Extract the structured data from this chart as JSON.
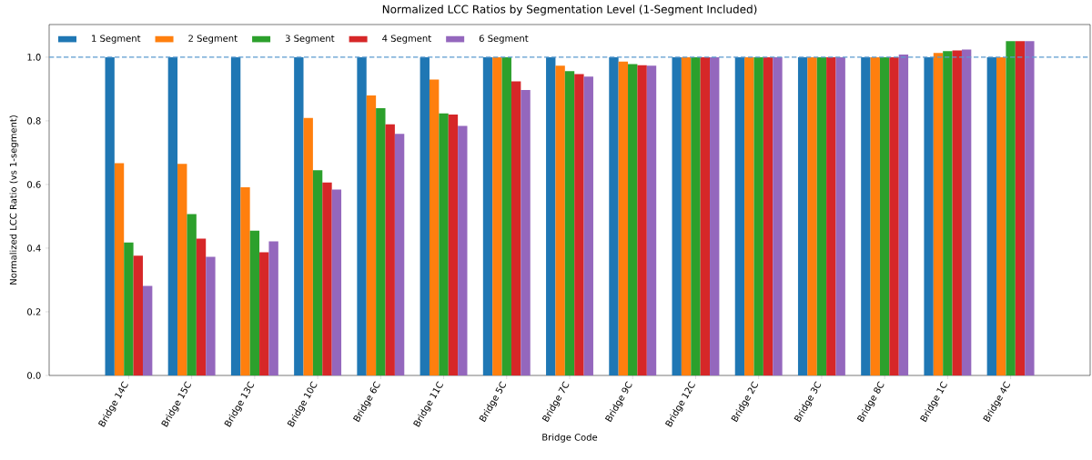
{
  "chart_data": {
    "type": "bar",
    "title": "Normalized LCC Ratios by Segmentation Level (1-Segment Included)",
    "xlabel": "Bridge Code",
    "ylabel": "Normalized LCC Ratio (vs 1-segment)",
    "categories": [
      "Bridge 14C",
      "Bridge 15C",
      "Bridge 13C",
      "Bridge 10C",
      "Bridge 6C",
      "Bridge 11C",
      "Bridge 5C",
      "Bridge 7C",
      "Bridge 9C",
      "Bridge 12C",
      "Bridge 2C",
      "Bridge 3C",
      "Bridge 8C",
      "Bridge 1C",
      "Bridge 4C"
    ],
    "series": [
      {
        "name": "1 Segment",
        "color": "#1f77b4",
        "values": [
          1.0,
          1.0,
          1.0,
          1.0,
          1.0,
          1.0,
          1.0,
          1.0,
          1.0,
          1.0,
          1.0,
          1.0,
          1.0,
          1.0,
          1.0
        ]
      },
      {
        "name": "2 Segment",
        "color": "#ff7f0e",
        "values": [
          0.667,
          0.665,
          0.591,
          0.809,
          0.88,
          0.93,
          1.0,
          0.973,
          0.986,
          1.0,
          1.0,
          1.0,
          1.0,
          1.013,
          1.0
        ]
      },
      {
        "name": "3 Segment",
        "color": "#2ca02c",
        "values": [
          0.418,
          0.507,
          0.455,
          0.645,
          0.84,
          0.823,
          1.0,
          0.956,
          0.978,
          1.0,
          1.0,
          1.0,
          1.0,
          1.019,
          1.05
        ]
      },
      {
        "name": "4 Segment",
        "color": "#d62728",
        "values": [
          0.376,
          0.43,
          0.387,
          0.606,
          0.789,
          0.82,
          0.924,
          0.947,
          0.975,
          1.0,
          1.0,
          1.0,
          1.0,
          1.021,
          1.05
        ]
      },
      {
        "name": "6 Segment",
        "color": "#9467bd",
        "values": [
          0.281,
          0.373,
          0.421,
          0.584,
          0.759,
          0.784,
          0.897,
          0.939,
          0.973,
          1.0,
          1.0,
          1.0,
          1.008,
          1.024,
          1.05
        ]
      }
    ],
    "ylim": [
      0,
      1.1025
    ],
    "yticks": [
      {
        "value": 0,
        "label": "0.0"
      },
      {
        "value": 0.2,
        "label": "0.2"
      },
      {
        "value": 0.4,
        "label": "0.4"
      },
      {
        "value": 0.6,
        "label": "0.6"
      },
      {
        "value": 0.8,
        "label": "0.8"
      },
      {
        "value": 1.0,
        "label": "1.0"
      }
    ],
    "ref_lines": [
      {
        "axis": "y",
        "value": 1.0,
        "color": "#5b9bd0",
        "line_style": "dashed"
      }
    ],
    "legend": "top left"
  }
}
